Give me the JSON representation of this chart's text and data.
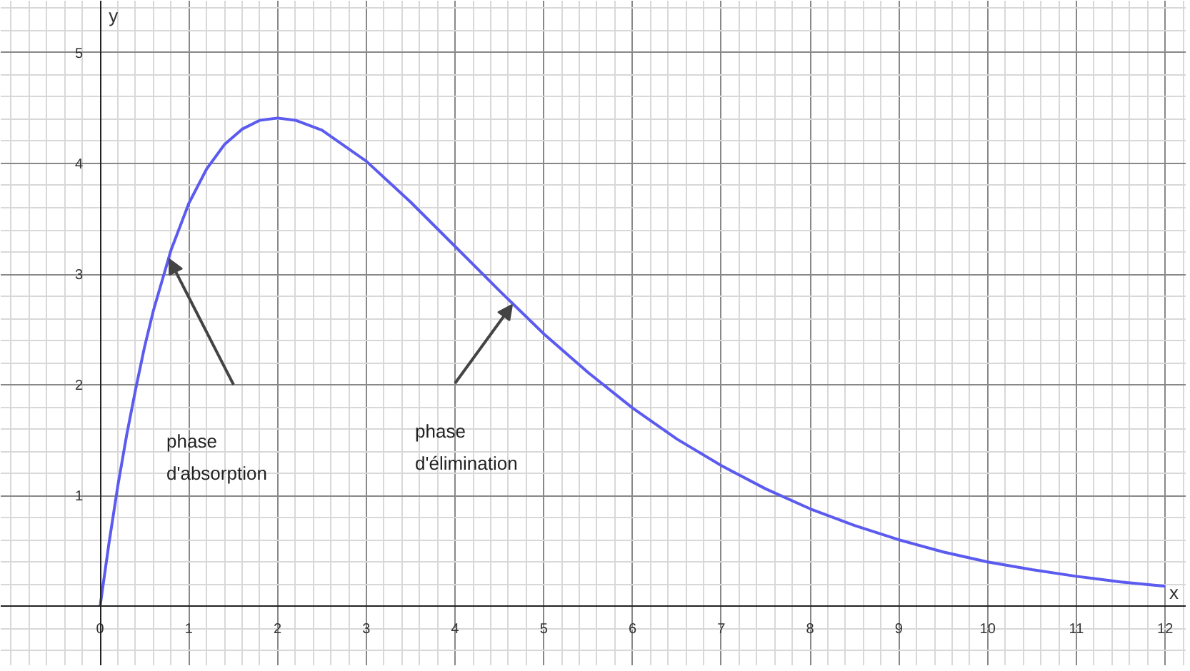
{
  "chart_data": {
    "type": "line",
    "xlabel": "x",
    "ylabel": "y",
    "x": [
      0,
      0.1,
      0.2,
      0.3,
      0.4,
      0.5,
      0.6,
      0.8,
      1,
      1.2,
      1.4,
      1.6,
      1.8,
      2,
      2.2,
      2.5,
      3,
      3.5,
      4,
      4.5,
      5,
      5.5,
      6,
      6.5,
      7,
      7.5,
      8,
      8.5,
      9,
      9.5,
      10,
      10.5,
      11,
      11.5,
      12
    ],
    "series": [
      {
        "color": "#5b5bf0",
        "values": [
          0,
          0.57,
          1.09,
          1.55,
          1.96,
          2.34,
          2.67,
          3.22,
          3.64,
          3.95,
          4.17,
          4.31,
          4.39,
          4.41,
          4.39,
          4.3,
          4.02,
          3.65,
          3.25,
          2.85,
          2.46,
          2.11,
          1.79,
          1.51,
          1.27,
          1.06,
          0.88,
          0.73,
          0.6,
          0.49,
          0.4,
          0.33,
          0.27,
          0.22,
          0.18
        ]
      }
    ],
    "xlim": [
      -1.12,
      12.24
    ],
    "ylim": [
      -0.54,
      5.47
    ],
    "xticks": [
      0,
      1,
      2,
      3,
      4,
      5,
      6,
      7,
      8,
      9,
      10,
      11,
      12
    ],
    "yticks": [
      1,
      2,
      3,
      4,
      5
    ],
    "grid": true,
    "marker": "none",
    "line_style": "solid",
    "annotations": [
      "phase d'absorption",
      "phase d'élimination"
    ]
  }
}
